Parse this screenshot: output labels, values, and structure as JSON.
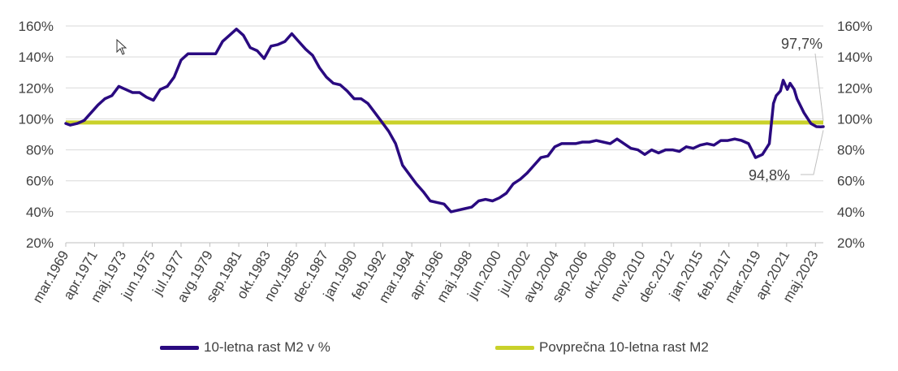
{
  "chart_data": {
    "type": "line",
    "ylim": [
      20,
      160
    ],
    "y_ticks": [
      "20%",
      "40%",
      "60%",
      "80%",
      "100%",
      "120%",
      "140%",
      "160%"
    ],
    "y_tick_values": [
      20,
      40,
      60,
      80,
      100,
      120,
      140,
      160
    ],
    "x_range": [
      1969.17,
      2023.9
    ],
    "x_tick_labels": [
      "mar.1969",
      "apr.1971",
      "maj.1973",
      "jun.1975",
      "jul.1977",
      "avg.1979",
      "sep.1981",
      "okt.1983",
      "nov.1985",
      "dec.1987",
      "jan.1990",
      "feb.1992",
      "mar.1994",
      "apr.1996",
      "maj.1998",
      "jun.2000",
      "jul.2002",
      "avg.2004",
      "sep.2006",
      "okt.2008",
      "nov.2010",
      "dec.2012",
      "jan.2015",
      "feb.2017",
      "mar.2019",
      "apr.2021",
      "maj.2023"
    ],
    "x_tick_values": [
      1969.17,
      1971.25,
      1973.33,
      1975.42,
      1977.5,
      1979.58,
      1981.67,
      1983.75,
      1985.83,
      1987.92,
      1990.0,
      1992.08,
      1994.17,
      1996.25,
      1998.33,
      2000.42,
      2002.5,
      2004.58,
      2006.67,
      2008.75,
      2010.83,
      2012.92,
      2015.0,
      2017.08,
      2019.17,
      2021.25,
      2023.33
    ],
    "grid": true,
    "legend_position": "bottom",
    "series": [
      {
        "name": "10-letna rast M2 v %",
        "color": "#2a0a80",
        "x": [
          1969.17,
          1969.5,
          1970.0,
          1970.5,
          1971.0,
          1971.5,
          1972.0,
          1972.5,
          1973.0,
          1973.5,
          1974.0,
          1974.5,
          1975.0,
          1975.5,
          1976.0,
          1976.5,
          1977.0,
          1977.5,
          1978.0,
          1978.5,
          1979.0,
          1979.5,
          1980.0,
          1980.5,
          1981.0,
          1981.5,
          1982.0,
          1982.5,
          1983.0,
          1983.5,
          1984.0,
          1984.5,
          1985.0,
          1985.5,
          1986.0,
          1986.5,
          1987.0,
          1987.5,
          1988.0,
          1988.5,
          1989.0,
          1989.5,
          1990.0,
          1990.5,
          1991.0,
          1991.5,
          1992.0,
          1992.5,
          1993.0,
          1993.5,
          1994.0,
          1994.5,
          1995.0,
          1995.5,
          1996.0,
          1996.5,
          1997.0,
          1997.5,
          1998.0,
          1998.5,
          1999.0,
          1999.5,
          2000.0,
          2000.5,
          2001.0,
          2001.5,
          2002.0,
          2002.5,
          2003.0,
          2003.5,
          2004.0,
          2004.5,
          2005.0,
          2005.5,
          2006.0,
          2006.5,
          2007.0,
          2007.5,
          2008.0,
          2008.5,
          2009.0,
          2009.5,
          2010.0,
          2010.5,
          2011.0,
          2011.5,
          2012.0,
          2012.5,
          2013.0,
          2013.5,
          2014.0,
          2014.5,
          2015.0,
          2015.5,
          2016.0,
          2016.5,
          2017.0,
          2017.5,
          2018.0,
          2018.5,
          2019.0,
          2019.5,
          2020.0,
          2020.3,
          2020.5,
          2020.8,
          2021.0,
          2021.3,
          2021.5,
          2021.8,
          2022.0,
          2022.5,
          2023.0,
          2023.4,
          2023.7,
          2023.9
        ],
        "values": [
          97,
          96,
          97,
          99,
          104,
          109,
          113,
          115,
          121,
          119,
          117,
          117,
          114,
          112,
          119,
          121,
          127,
          138,
          142,
          142,
          142,
          142,
          142,
          150,
          154,
          158,
          154,
          146,
          144,
          139,
          147,
          148,
          150,
          155,
          150,
          145,
          141,
          133,
          127,
          123,
          122,
          118,
          113,
          113,
          110,
          104,
          98,
          92,
          84,
          70,
          64,
          58,
          53,
          47,
          46,
          45,
          40,
          41,
          42,
          43,
          47,
          48,
          47,
          49,
          52,
          58,
          61,
          65,
          70,
          75,
          76,
          82,
          84,
          84,
          84,
          85,
          85,
          86,
          85,
          84,
          87,
          84,
          81,
          80,
          77,
          80,
          78,
          80,
          80,
          79,
          82,
          81,
          83,
          84,
          83,
          86,
          86,
          87,
          86,
          84,
          75,
          77,
          84,
          110,
          115,
          118,
          125,
          119,
          123,
          119,
          113,
          104,
          97,
          95,
          94.8,
          95
        ]
      },
      {
        "name": "Povprečna 10-letna rast M2",
        "color": "#c9d12a",
        "values": [
          97.7
        ]
      }
    ],
    "annotations": [
      {
        "text": "97,7%",
        "x": 2023.9,
        "y": 97.7
      },
      {
        "text": "94,8%",
        "x": 2023.9,
        "y": 94.8
      }
    ]
  }
}
